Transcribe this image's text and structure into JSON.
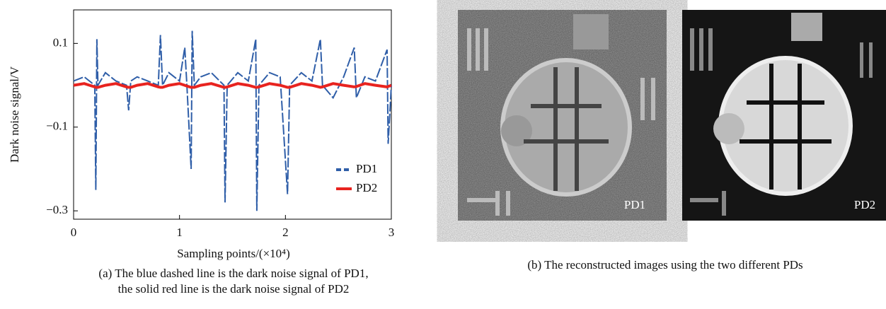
{
  "chart_data": {
    "type": "line",
    "xlabel": "Sampling points/(×10⁴)",
    "ylabel": "Dark noise signal/V",
    "caption": [
      "(a) The blue dashed line is the dark noise signal of PD1,",
      "the solid red line is the dark noise signal of PD2"
    ],
    "x": [
      0,
      0.1,
      0.2,
      0.21,
      0.22,
      0.23,
      0.3,
      0.4,
      0.5,
      0.52,
      0.54,
      0.6,
      0.7,
      0.8,
      0.82,
      0.84,
      0.9,
      1.0,
      1.05,
      1.07,
      1.11,
      1.12,
      1.14,
      1.2,
      1.3,
      1.42,
      1.43,
      1.45,
      1.55,
      1.65,
      1.72,
      1.73,
      1.75,
      1.85,
      1.95,
      2.02,
      2.04,
      2.15,
      2.25,
      2.33,
      2.35,
      2.45,
      2.55,
      2.65,
      2.67,
      2.75,
      2.85,
      2.96,
      2.97,
      3.0
    ],
    "series": [
      {
        "name": "PD1",
        "color": "#2f5ea8",
        "dashed": true,
        "values": [
          0.01,
          0.02,
          0.0,
          -0.25,
          0.11,
          0.0,
          0.03,
          0.01,
          0.0,
          -0.06,
          0.01,
          0.02,
          0.01,
          0.0,
          0.12,
          0.0,
          0.03,
          0.01,
          0.09,
          0.0,
          -0.2,
          0.13,
          0.0,
          0.02,
          0.03,
          0.0,
          -0.28,
          0.0,
          0.03,
          0.01,
          0.11,
          -0.3,
          0.0,
          0.03,
          0.02,
          -0.26,
          0.0,
          0.03,
          0.01,
          0.11,
          0.0,
          -0.03,
          0.02,
          0.09,
          -0.03,
          0.02,
          0.01,
          0.085,
          -0.14,
          0.0
        ]
      },
      {
        "name": "PD2",
        "color": "#e8231f",
        "values": [
          0,
          0.004,
          -0.004,
          -0.005,
          -0.005,
          -0.005,
          0,
          0.004,
          -0.004,
          -0.005,
          -0.005,
          0,
          0.004,
          -0.004,
          -0.005,
          -0.005,
          0,
          0.004,
          0,
          -0.002,
          -0.005,
          -0.005,
          -0.005,
          0,
          0.004,
          -0.005,
          -0.005,
          -0.004,
          0.004,
          0,
          -0.005,
          -0.005,
          -0.004,
          0.004,
          0,
          -0.005,
          -0.005,
          0.004,
          0,
          -0.005,
          -0.004,
          0.004,
          0,
          -0.004,
          -0.003,
          0.004,
          0,
          -0.004,
          -0.003,
          0
        ]
      }
    ],
    "xlim": [
      0,
      3
    ],
    "xticks": [
      0,
      1,
      2,
      3
    ],
    "ylim": [
      -0.32,
      0.18
    ],
    "yticks": [
      0.1,
      {
        "value": -0.1,
        "label": "−0.1"
      },
      {
        "value": -0.3,
        "label": "−0.3"
      }
    ],
    "legend": "lower-right"
  },
  "images": {
    "caption": "(b) The reconstructed images using the two different PDs",
    "panels": [
      {
        "label": "PD1"
      },
      {
        "label": "PD2"
      }
    ]
  }
}
